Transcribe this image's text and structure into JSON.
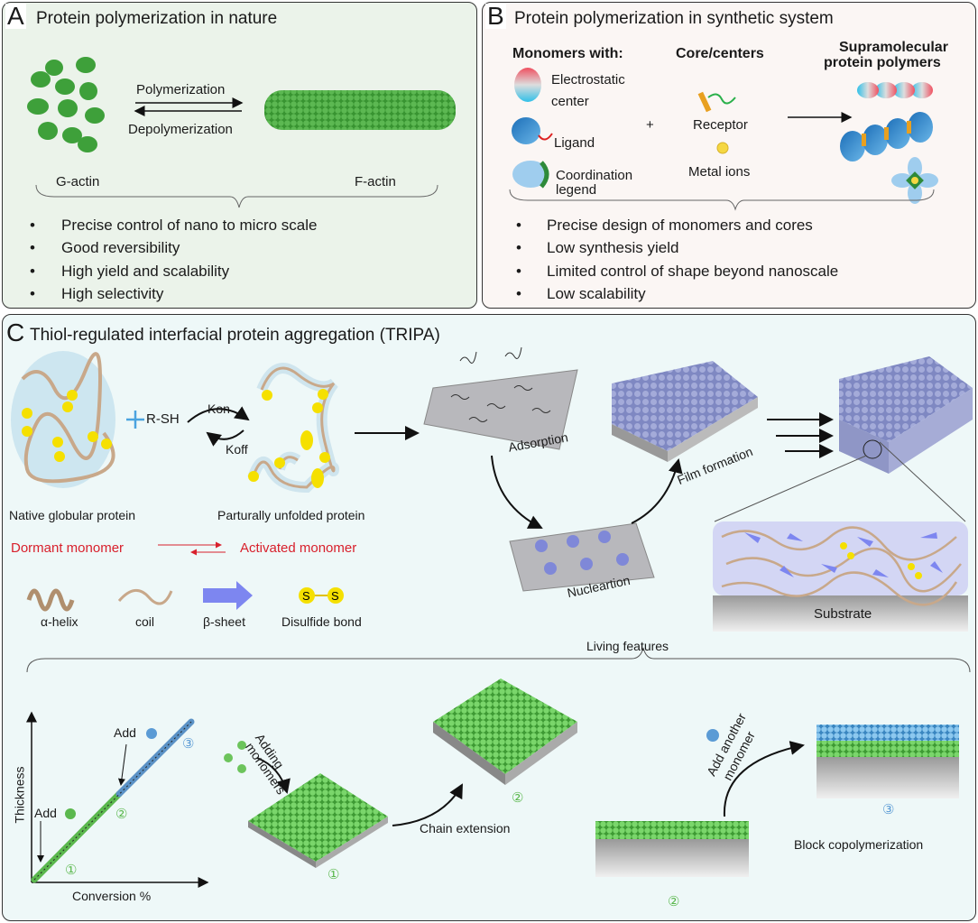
{
  "panel_a": {
    "letter": "A",
    "title": "Protein polymerization in nature",
    "forward": "Polymerization",
    "reverse": "Depolymerization",
    "left_label": "G-actin",
    "right_label": "F-actin",
    "bullets": [
      "Precise control of nano to micro scale",
      "Good reversibility",
      "High yield and scalability",
      "High selectivity"
    ]
  },
  "panel_b": {
    "letter": "B",
    "title": "Protein polymerization in synthetic system",
    "monomers_heading": "Monomers with:",
    "cores_heading": "Core/centers",
    "products_heading": [
      "Supramolecular",
      "protein polymers"
    ],
    "monomers": [
      [
        "Electrostatic",
        "center"
      ],
      [
        "Ligand"
      ],
      [
        "Coordination",
        "legend"
      ]
    ],
    "plus": "+",
    "cores": [
      "Receptor",
      "Metal ions"
    ],
    "bullets": [
      "Precise design of monomers and cores",
      "Low synthesis yield",
      "Limited control of shape beyond nanoscale",
      "Low scalability"
    ]
  },
  "panel_c": {
    "letter": "C",
    "title": "Thiol-regulated interfacial protein aggregation (TRIPA)",
    "reagent": "R-SH",
    "kon": "Kon",
    "koff": "Koff",
    "native_label": "Native globular protein",
    "unfolded_label": "Parturally unfolded protein",
    "dormant": "Dormant monomer",
    "activated": "Activated monomer",
    "legend": [
      "α-helix",
      "coil",
      "β-sheet",
      "Disulfide bond"
    ],
    "disulfide_glyph": [
      "S",
      "S"
    ],
    "steps": {
      "adsorption": "Adsorption",
      "film": "Film formation",
      "nucleation": "Nucleartion",
      "substrate": "Substrate"
    },
    "living_features": "Living features",
    "graph": {
      "ylabel": "Thickness",
      "xlabel": "Conversion %",
      "add1": "Add",
      "add2": "Add",
      "marks": [
        "①",
        "②",
        "③"
      ]
    },
    "adding": [
      "Adding",
      "monomers"
    ],
    "chain_extension": "Chain extension",
    "film_marks": [
      "①",
      "②",
      "②",
      "③"
    ],
    "add_another": [
      "Add another",
      "monomer"
    ],
    "block": "Block copolymerization"
  },
  "colors": {
    "panel_a_bg": "#ebf3ea",
    "panel_b_bg": "#fbf6f4",
    "panel_c_bg": "#eef8f8",
    "green": "#4caf3e",
    "blue": "#5b9bd5",
    "red": "#d8202c",
    "film": "#8e96c8"
  }
}
